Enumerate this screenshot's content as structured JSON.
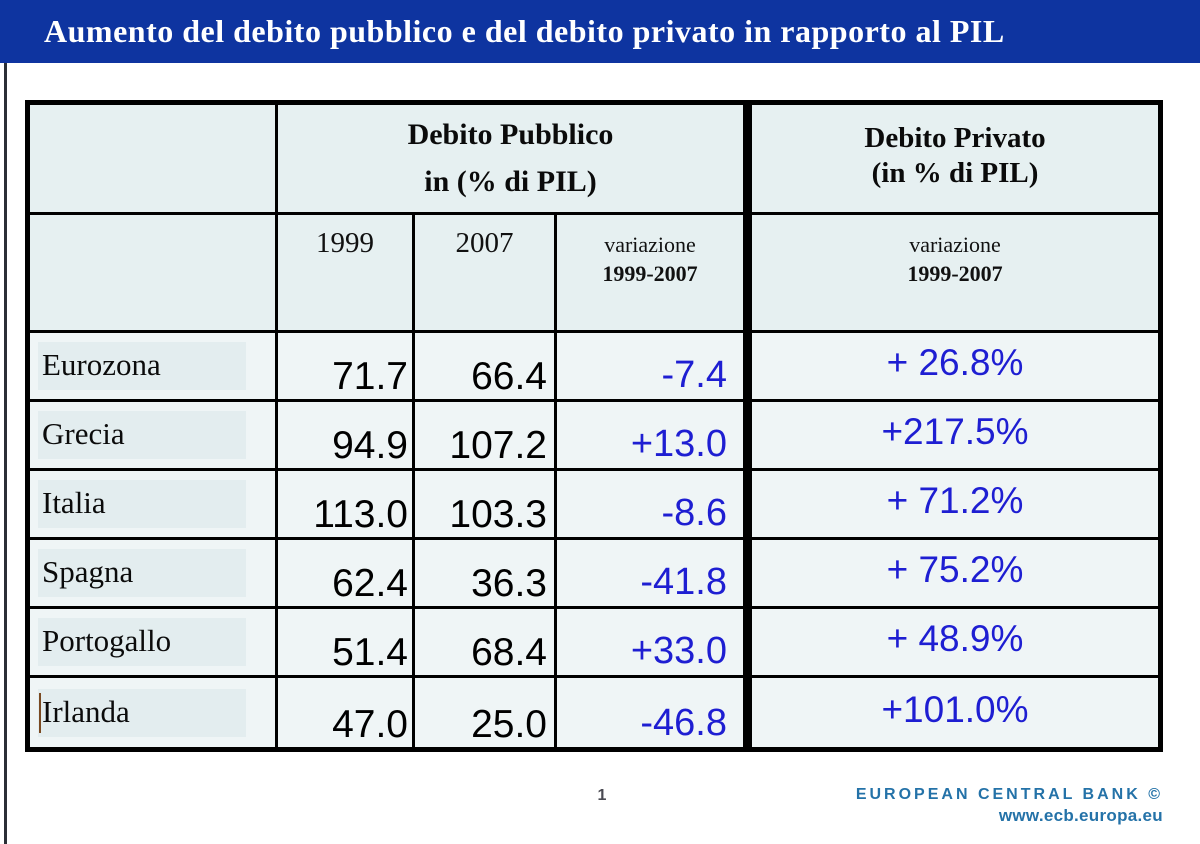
{
  "title": "Aumento del debito pubblico e del debito privato in rapporto al PIL",
  "table": {
    "header": {
      "public_title_line1": "Debito Pubblico",
      "public_title_line2": "in (% di PIL)",
      "private_title_line1": "Debito Privato",
      "private_title_line2": "(in % di PIL)",
      "col_1999": "1999",
      "col_2007": "2007",
      "public_variation_line1": "variazione",
      "public_variation_line2": "1999-2007",
      "private_variation_line1": "variazione",
      "private_variation_line2": "1999-2007"
    },
    "rows": [
      {
        "country": "Eurozona",
        "debt_1999": "71.7",
        "debt_2007": "66.4",
        "variation": "-7.4",
        "private_variation": "+ 26.8%"
      },
      {
        "country": "Grecia",
        "debt_1999": "94.9",
        "debt_2007": "107.2",
        "variation": "+13.0",
        "private_variation": "+217.5%"
      },
      {
        "country": "Italia",
        "debt_1999": "113.0",
        "debt_2007": "103.3",
        "variation": "-8.6",
        "private_variation": "+ 71.2%"
      },
      {
        "country": "Spagna",
        "debt_1999": "62.4",
        "debt_2007": "36.3",
        "variation": "-41.8",
        "private_variation": "+ 75.2%"
      },
      {
        "country": "Portogallo",
        "debt_1999": "51.4",
        "debt_2007": "68.4",
        "variation": "+33.0",
        "private_variation": "+ 48.9%"
      },
      {
        "country": "Irlanda",
        "debt_1999": "47.0",
        "debt_2007": "25.0",
        "variation": "-46.8",
        "private_variation": "+101.0%"
      }
    ]
  },
  "footer": {
    "page_number": "1",
    "ecb_name": "EUROPEAN CENTRAL BANK ©",
    "ecb_url": "www.ecb.europa.eu"
  },
  "colors": {
    "title_band": "#0E34A0",
    "table_border": "#000000",
    "cell_background": "#EFF5F6",
    "header_cell_background": "#E6F0F1",
    "country_highlight": "#E3EDEF",
    "value_blue": "#1E1ED2",
    "ecb_blue": "#2472A8"
  }
}
